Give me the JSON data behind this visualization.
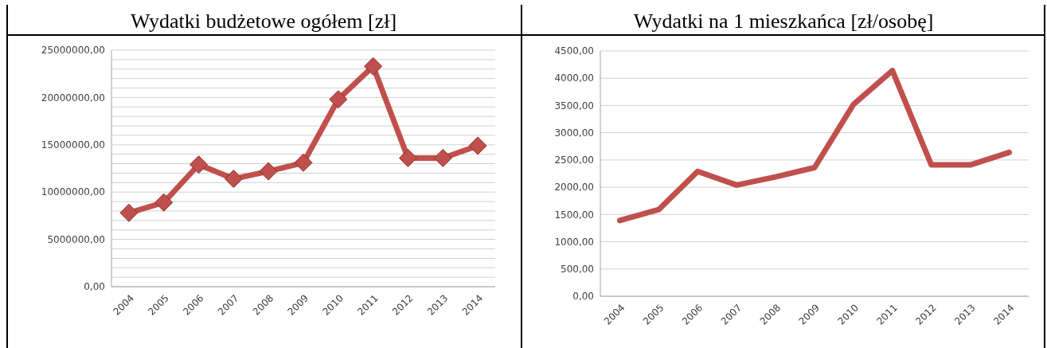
{
  "chart_data": [
    {
      "type": "line",
      "title": "Wydatki budżetowe ogółem [zł]",
      "categories": [
        "2004",
        "2005",
        "2006",
        "2007",
        "2008",
        "2009",
        "2010",
        "2011",
        "2012",
        "2013",
        "2014"
      ],
      "series": [
        {
          "color": "#c0504d",
          "values": [
            7800000,
            8900000,
            12900000,
            11400000,
            12200000,
            13100000,
            19800000,
            23300000,
            13600000,
            13600000,
            14900000
          ]
        }
      ],
      "ylim": [
        0,
        25000000
      ],
      "yticks": [
        {
          "value": 0,
          "label": "0,00"
        },
        {
          "value": 1000000,
          "label": null
        },
        {
          "value": 2000000,
          "label": null
        },
        {
          "value": 3000000,
          "label": null
        },
        {
          "value": 4000000,
          "label": null
        },
        {
          "value": 5000000,
          "label": "5000000,00"
        },
        {
          "value": 6000000,
          "label": null
        },
        {
          "value": 7000000,
          "label": null
        },
        {
          "value": 8000000,
          "label": null
        },
        {
          "value": 9000000,
          "label": null
        },
        {
          "value": 10000000,
          "label": "10000000,00"
        },
        {
          "value": 11000000,
          "label": null
        },
        {
          "value": 12000000,
          "label": null
        },
        {
          "value": 13000000,
          "label": null
        },
        {
          "value": 14000000,
          "label": null
        },
        {
          "value": 15000000,
          "label": "15000000,00"
        },
        {
          "value": 16000000,
          "label": null
        },
        {
          "value": 17000000,
          "label": null
        },
        {
          "value": 18000000,
          "label": null
        },
        {
          "value": 19000000,
          "label": null
        },
        {
          "value": 20000000,
          "label": "20000000,00"
        },
        {
          "value": 21000000,
          "label": null
        },
        {
          "value": 22000000,
          "label": null
        },
        {
          "value": 23000000,
          "label": null
        },
        {
          "value": 24000000,
          "label": null
        },
        {
          "value": 25000000,
          "label": "25000000,00"
        }
      ],
      "grid": "y",
      "marker": "diamond"
    },
    {
      "type": "line",
      "title": "Wydatki na 1 mieszkańca  [zł/osobę]",
      "categories": [
        "2004",
        "2005",
        "2006",
        "2007",
        "2008",
        "2009",
        "2010",
        "2011",
        "2012",
        "2013",
        "2014"
      ],
      "series": [
        {
          "color": "#c0504d",
          "values": [
            1390,
            1590,
            2290,
            2040,
            2190,
            2360,
            3520,
            4140,
            2410,
            2410,
            2640
          ]
        }
      ],
      "ylim": [
        0,
        4500
      ],
      "yticks": [
        {
          "value": 0,
          "label": "0,00"
        },
        {
          "value": 500,
          "label": "500,00"
        },
        {
          "value": 1000,
          "label": "1000,00"
        },
        {
          "value": 1500,
          "label": "1500,00"
        },
        {
          "value": 2000,
          "label": "2000,00"
        },
        {
          "value": 2500,
          "label": "2500,00"
        },
        {
          "value": 3000,
          "label": "3000,00"
        },
        {
          "value": 3500,
          "label": "3500,00"
        },
        {
          "value": 4000,
          "label": "4000,00"
        },
        {
          "value": 4500,
          "label": "4500,00"
        }
      ],
      "grid": "y",
      "marker": "none"
    }
  ]
}
